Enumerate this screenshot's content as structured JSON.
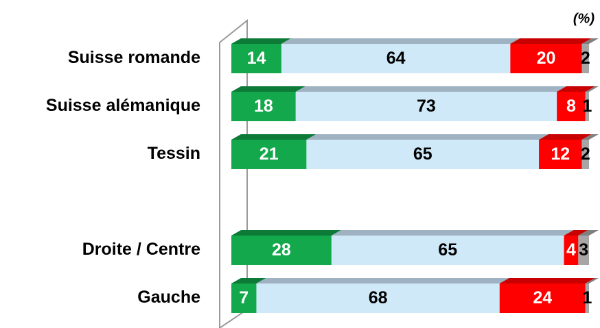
{
  "chart_data": {
    "type": "stacked-bar-horizontal",
    "annotation": "(%)",
    "categories": [
      "Suisse romande",
      "Suisse alémanique",
      "Tessin",
      null,
      "Droite / Centre",
      "Gauche"
    ],
    "xlim": [
      0,
      100
    ],
    "series": [
      {
        "color": "#13a84b",
        "top_color": "#0d7a37",
        "values": [
          14,
          18,
          21,
          null,
          28,
          7
        ]
      },
      {
        "color": "#cfe9f9",
        "top_color": "#9fb2c2",
        "values": [
          64,
          73,
          65,
          null,
          65,
          68
        ]
      },
      {
        "color": "#ff0000",
        "top_color": "#c80000",
        "values": [
          20,
          8,
          12,
          null,
          4,
          24
        ]
      },
      {
        "color": "#a6a6a6",
        "top_color": "#7f7f7f",
        "values": [
          2,
          1,
          2,
          null,
          3,
          1
        ]
      }
    ]
  }
}
